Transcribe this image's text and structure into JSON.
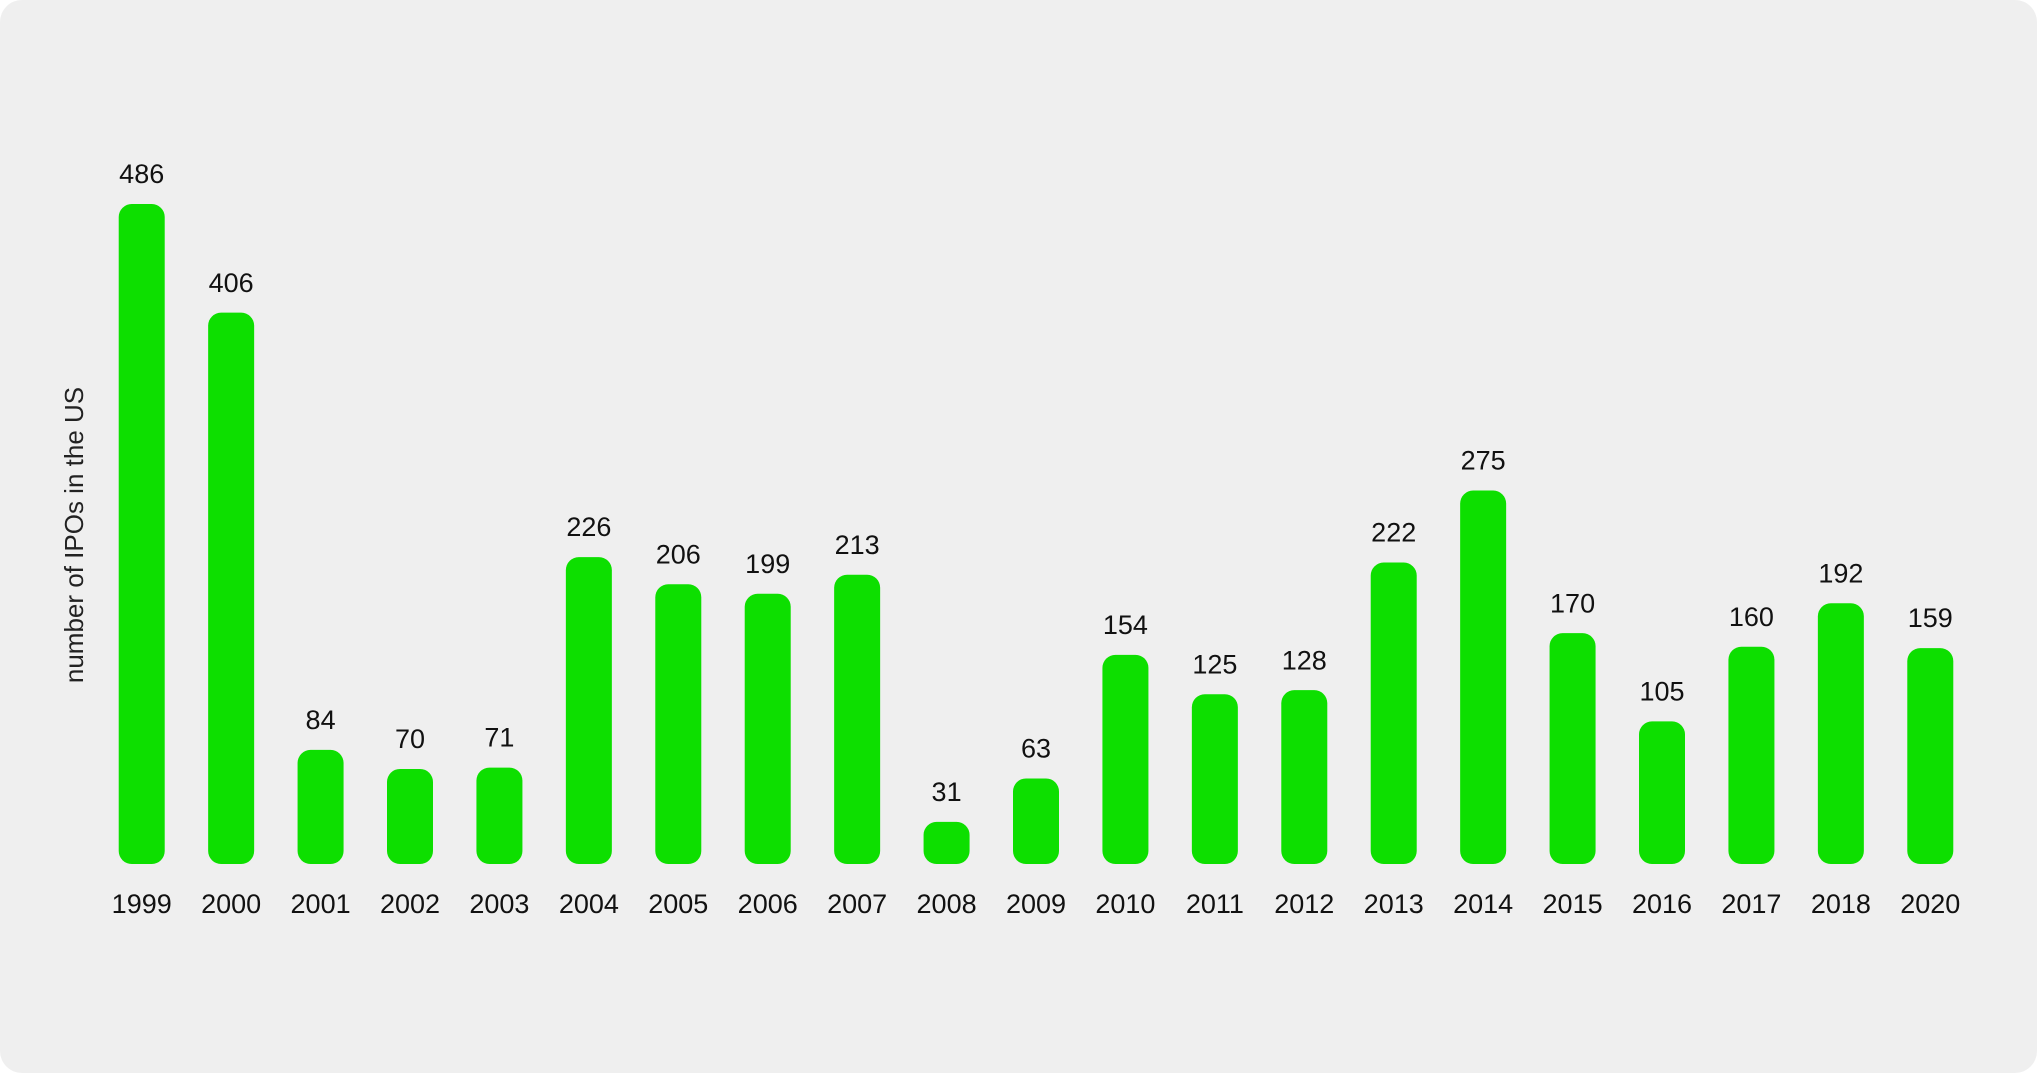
{
  "chart_data": {
    "type": "bar",
    "y_axis_label": "number of IPOs in the US",
    "categories": [
      "1999",
      "2000",
      "2001",
      "2002",
      "2003",
      "2004",
      "2005",
      "2006",
      "2007",
      "2008",
      "2009",
      "2010",
      "2011",
      "2012",
      "2013",
      "2014",
      "2015",
      "2016",
      "2017",
      "2018",
      "2020"
    ],
    "values": [
      486,
      406,
      84,
      70,
      71,
      226,
      206,
      199,
      213,
      31,
      63,
      154,
      125,
      128,
      222,
      275,
      170,
      105,
      160,
      192,
      159
    ],
    "color": "#0ddf00",
    "ylim": [
      0,
      500
    ]
  }
}
